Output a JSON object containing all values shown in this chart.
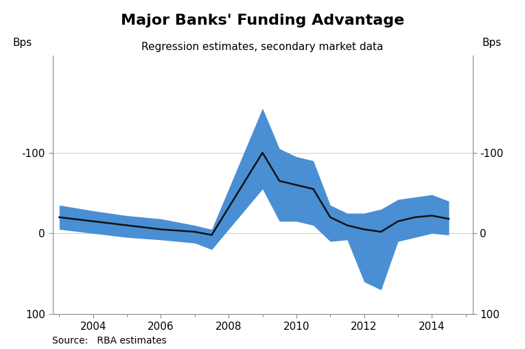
{
  "title": "Major Banks' Funding Advantage",
  "subtitle": "Regression estimates, secondary market data",
  "source": "Source:   RBA estimates",
  "ylabel_left": "Bps",
  "ylabel_right": "Bps",
  "xlim": [
    2002.8,
    2015.2
  ],
  "ylim": [
    100,
    -220
  ],
  "yticks": [
    100,
    0,
    -100
  ],
  "ytick_labels": [
    "100",
    "0",
    "-100"
  ],
  "xticks": [
    2004,
    2006,
    2008,
    2010,
    2012,
    2014
  ],
  "minor_xticks": [
    2003,
    2005,
    2007,
    2009,
    2011,
    2013,
    2015
  ],
  "line_color": "#111111",
  "band_color": "#4a8fd4",
  "band_alpha": 1.0,
  "background_color": "#ffffff",
  "x_line": [
    2003.0,
    2004.0,
    2005.0,
    2006.0,
    2007.0,
    2007.5,
    2009.0,
    2009.5,
    2010.0,
    2010.5,
    2011.0,
    2011.5,
    2012.0,
    2012.5,
    2013.0,
    2013.5,
    2014.0,
    2014.5
  ],
  "y_line": [
    -20,
    -15,
    -10,
    -5,
    -2,
    2,
    -100,
    -65,
    -60,
    -55,
    -20,
    -10,
    -5,
    -2,
    -15,
    -20,
    -22,
    -18
  ],
  "y_upper": [
    -35,
    -28,
    -22,
    -18,
    -10,
    -5,
    -155,
    -105,
    -95,
    -90,
    -35,
    -25,
    -25,
    -30,
    -42,
    -45,
    -48,
    -40
  ],
  "y_lower": [
    -5,
    0,
    5,
    8,
    12,
    20,
    -55,
    -15,
    -15,
    -10,
    10,
    8,
    60,
    70,
    10,
    5,
    0,
    2
  ],
  "title_fontsize": 16,
  "subtitle_fontsize": 11,
  "tick_fontsize": 11,
  "source_fontsize": 10,
  "grid_color": "#cccccc",
  "line_width": 1.8,
  "figsize": [
    7.65,
    5.09
  ],
  "dpi": 100
}
